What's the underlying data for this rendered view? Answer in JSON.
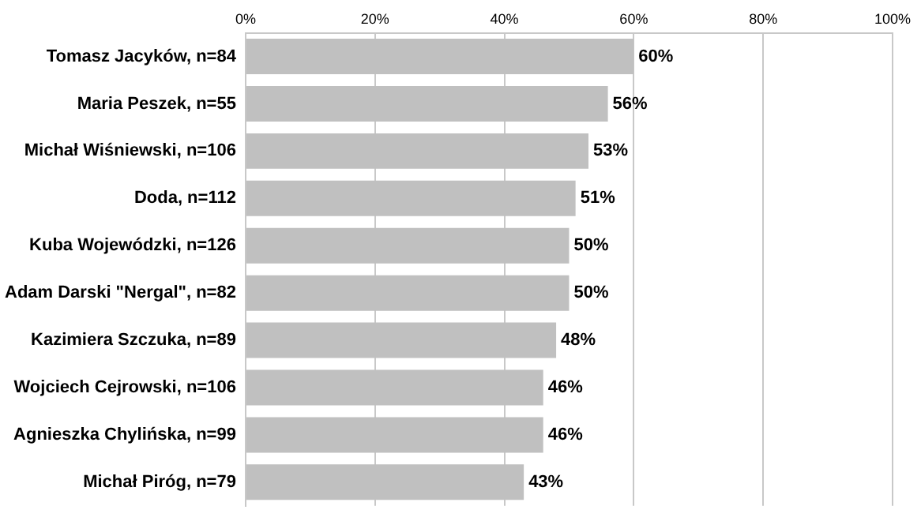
{
  "chart_data": {
    "type": "bar",
    "orientation": "horizontal",
    "categories": [
      "Tomasz Jacyków, n=84",
      "Maria Peszek, n=55",
      "Michał Wiśniewski, n=106",
      "Doda, n=112",
      "Kuba Wojewódzki, n=126",
      "Adam Darski \"Nergal\", n=82",
      "Kazimiera Szczuka, n=89",
      "Wojciech Cejrowski, n=106",
      "Agnieszka Chylińska, n=99",
      "Michał Piróg, n=79"
    ],
    "values": [
      60,
      56,
      53,
      51,
      50,
      50,
      48,
      46,
      46,
      43
    ],
    "value_labels": [
      "60%",
      "56%",
      "53%",
      "51%",
      "50%",
      "50%",
      "48%",
      "46%",
      "46%",
      "43%"
    ],
    "color": "#c0c0c0",
    "xlim": [
      0,
      100
    ],
    "xticks": [
      {
        "value": 0,
        "label": "0%"
      },
      {
        "value": 20,
        "label": "20%"
      },
      {
        "value": 40,
        "label": "40%"
      },
      {
        "value": 60,
        "label": "60%"
      },
      {
        "value": 80,
        "label": "80%"
      },
      {
        "value": 100,
        "label": "100%"
      }
    ],
    "grid": "x",
    "legend": false
  }
}
